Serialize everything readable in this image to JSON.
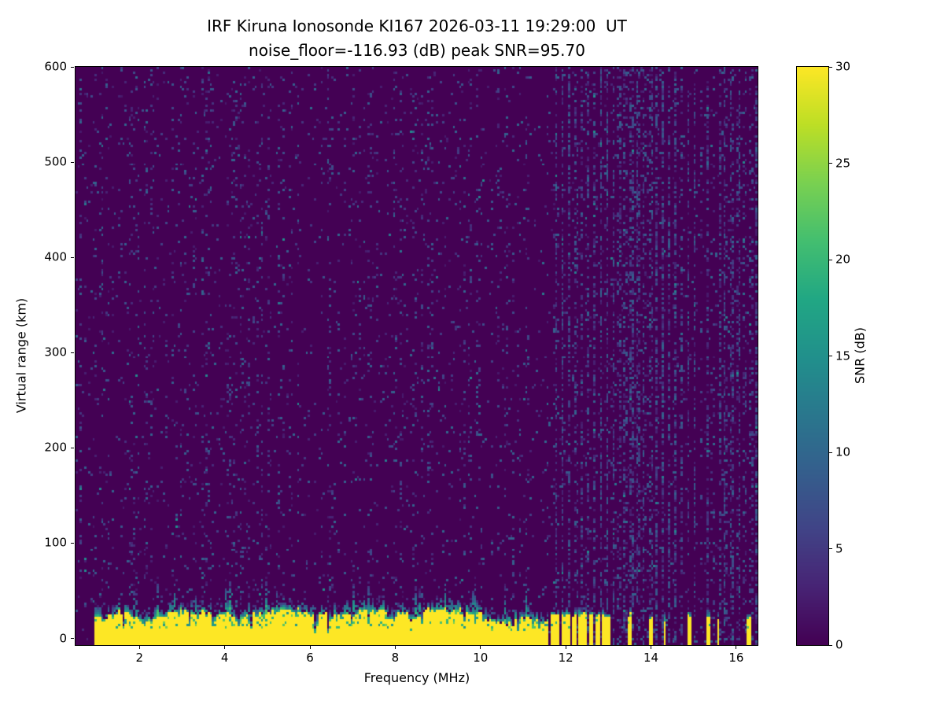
{
  "chart_data": {
    "type": "heatmap",
    "title": "IRF Kiruna Ionosonde KI167 2026-03-11 19:29:00  UT",
    "subtitle": "noise_floor=-116.93 (dB) peak SNR=95.70",
    "station": "IRF Kiruna Ionosonde",
    "station_code": "KI167",
    "timestamp_ut": "2026-03-11 19:29:00 UT",
    "noise_floor_db": -116.93,
    "peak_snr_db": 95.7,
    "xlabel": "Frequency (MHz)",
    "ylabel": "Virtual range (km)",
    "xlim": [
      0.5,
      16.5
    ],
    "ylim": [
      -7,
      600
    ],
    "xticks": [
      2,
      4,
      6,
      8,
      10,
      12,
      14,
      16
    ],
    "yticks": [
      0,
      100,
      200,
      300,
      400,
      500,
      600
    ],
    "grid": false,
    "legend": "none",
    "colorbar": {
      "label": "SNR (dB)",
      "min": 0,
      "max": 30,
      "ticks": [
        0,
        5,
        10,
        15,
        20,
        25,
        30
      ],
      "colormap": "viridis",
      "position": "right"
    },
    "colormap_stops": [
      [
        0.0,
        "#440154"
      ],
      [
        0.1,
        "#482475"
      ],
      [
        0.2,
        "#414487"
      ],
      [
        0.3,
        "#355f8d"
      ],
      [
        0.4,
        "#2a788e"
      ],
      [
        0.5,
        "#21918c"
      ],
      [
        0.6,
        "#22a884"
      ],
      [
        0.7,
        "#44bf70"
      ],
      [
        0.8,
        "#7ad151"
      ],
      [
        0.9,
        "#bddf26"
      ],
      [
        1.0,
        "#fde725"
      ]
    ],
    "background_value_db": 0,
    "seed": 20260311,
    "features": {
      "ground_echo_band": {
        "freq_start_mhz": 0.95,
        "freq_end_mhz": 11.62,
        "range_top_km_mean": 24,
        "range_top_km_jitter": 8,
        "snr_db": 30,
        "fringe_snr_db": [
          8,
          22
        ]
      },
      "rf_stripes": [
        {
          "f": 11.7,
          "w": 0.1
        },
        {
          "f": 11.82,
          "w": 0.09
        },
        {
          "f": 11.94,
          "w": 0.1
        },
        {
          "f": 12.06,
          "w": 0.09
        },
        {
          "f": 12.19,
          "w": 0.1
        },
        {
          "f": 12.33,
          "w": 0.1
        },
        {
          "f": 12.47,
          "w": 0.09
        },
        {
          "f": 12.61,
          "w": 0.1
        },
        {
          "f": 12.75,
          "w": 0.09
        },
        {
          "f": 12.89,
          "w": 0.1
        },
        {
          "f": 13.01,
          "w": 0.08
        },
        {
          "f": 13.5,
          "w": 0.07
        },
        {
          "f": 13.99,
          "w": 0.08
        },
        {
          "f": 14.33,
          "w": 0.08
        },
        {
          "f": 14.9,
          "w": 0.11
        },
        {
          "f": 15.33,
          "w": 0.1
        },
        {
          "f": 15.58,
          "w": 0.08
        },
        {
          "f": 16.28,
          "w": 0.1
        }
      ],
      "rf_interference": {
        "start_mhz": 11.64,
        "spacing_mhz": 0.147,
        "snr_db_range": [
          2,
          9
        ]
      },
      "noise_speckle": {
        "density": 0.06,
        "snr_db_range": [
          2,
          8
        ]
      }
    }
  }
}
